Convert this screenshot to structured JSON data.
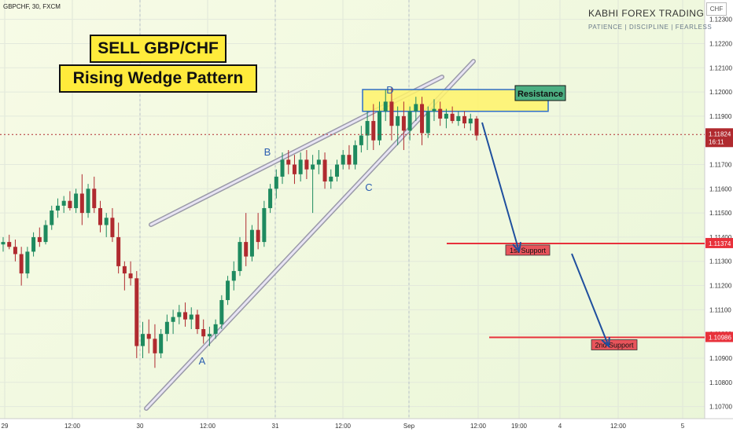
{
  "header": {
    "symbol": "GBPCHF, 30, FXCM"
  },
  "brand": {
    "name": "KABHI FOREX TRADING",
    "tagline": "PATIENCE  |  DISCIPLINE  |  FEARLESS"
  },
  "currency": "CHF",
  "titles": {
    "line1": "SELL GBP/CHF",
    "line2": "Rising Wedge Pattern"
  },
  "chart_data": {
    "type": "candlestick",
    "y_range": [
      1.1065,
      1.1238
    ],
    "y_ticks": [
      "1.12300",
      "1.12200",
      "1.12100",
      "1.12000",
      "1.11900",
      "1.11700",
      "1.11600",
      "1.11500",
      "1.11400",
      "1.11300",
      "1.11200",
      "1.11100",
      "1.11000",
      "1.10900",
      "1.10800",
      "1.10700"
    ],
    "y_tick_values": [
      1.123,
      1.122,
      1.121,
      1.12,
      1.119,
      1.117,
      1.116,
      1.115,
      1.114,
      1.113,
      1.112,
      1.111,
      1.11,
      1.109,
      1.108,
      1.107
    ],
    "x_ticks": [
      "29",
      "12:00",
      "30",
      "12:00",
      "31",
      "12:00",
      "Sep",
      "12:00",
      "19:00",
      "4",
      "12:00",
      "5"
    ],
    "current_price": {
      "value": "1.11824",
      "countdown": "16:11"
    },
    "levels": [
      {
        "name": "Resistance",
        "low": 1.1192,
        "high": 1.1201
      },
      {
        "name": "1st Support",
        "value": 1.11374,
        "label": "1.11374"
      },
      {
        "name": "2nd Support",
        "value": 1.10986,
        "label": "1.10986"
      }
    ],
    "pivot_labels": [
      "A",
      "B",
      "C",
      "D"
    ],
    "candles": [
      [
        1.1137,
        1.114,
        1.1134,
        1.1138
      ],
      [
        1.1138,
        1.1141,
        1.1135,
        1.1136
      ],
      [
        1.1136,
        1.1139,
        1.113,
        1.1133
      ],
      [
        1.1133,
        1.1136,
        1.112,
        1.1125
      ],
      [
        1.1125,
        1.1136,
        1.1123,
        1.1134
      ],
      [
        1.1134,
        1.1142,
        1.1132,
        1.114
      ],
      [
        1.114,
        1.1144,
        1.1136,
        1.1138
      ],
      [
        1.1138,
        1.1147,
        1.1137,
        1.1145
      ],
      [
        1.1145,
        1.1153,
        1.1143,
        1.1151
      ],
      [
        1.1151,
        1.1156,
        1.1148,
        1.1153
      ],
      [
        1.1153,
        1.1157,
        1.115,
        1.1155
      ],
      [
        1.1155,
        1.1159,
        1.1151,
        1.1152
      ],
      [
        1.1152,
        1.116,
        1.115,
        1.1158
      ],
      [
        1.1158,
        1.1166,
        1.1145,
        1.115
      ],
      [
        1.115,
        1.1162,
        1.1148,
        1.116
      ],
      [
        1.116,
        1.1165,
        1.115,
        1.1152
      ],
      [
        1.1152,
        1.1155,
        1.1142,
        1.1145
      ],
      [
        1.1145,
        1.115,
        1.114,
        1.1148
      ],
      [
        1.1148,
        1.1152,
        1.1138,
        1.114
      ],
      [
        1.114,
        1.1146,
        1.1125,
        1.1128
      ],
      [
        1.1128,
        1.113,
        1.1118,
        1.1125
      ],
      [
        1.1125,
        1.113,
        1.112,
        1.1123
      ],
      [
        1.1123,
        1.1126,
        1.109,
        1.1095
      ],
      [
        1.1095,
        1.1105,
        1.109,
        1.11
      ],
      [
        1.11,
        1.1106,
        1.1092,
        1.1098
      ],
      [
        1.1098,
        1.1104,
        1.1086,
        1.1092
      ],
      [
        1.1092,
        1.1102,
        1.109,
        1.11
      ],
      [
        1.11,
        1.1108,
        1.1097,
        1.1105
      ],
      [
        1.1105,
        1.111,
        1.11,
        1.1107
      ],
      [
        1.1107,
        1.1112,
        1.1104,
        1.1109
      ],
      [
        1.1109,
        1.1113,
        1.1103,
        1.1106
      ],
      [
        1.1106,
        1.1111,
        1.1102,
        1.1108
      ],
      [
        1.1108,
        1.111,
        1.11,
        1.1102
      ],
      [
        1.1102,
        1.1106,
        1.1096,
        1.1099
      ],
      [
        1.1099,
        1.1103,
        1.1095,
        1.11
      ],
      [
        1.11,
        1.1106,
        1.1098,
        1.1104
      ],
      [
        1.1104,
        1.1116,
        1.1102,
        1.1114
      ],
      [
        1.1114,
        1.1124,
        1.1112,
        1.1122
      ],
      [
        1.1122,
        1.113,
        1.1118,
        1.1126
      ],
      [
        1.1126,
        1.114,
        1.1124,
        1.1138
      ],
      [
        1.1138,
        1.115,
        1.1128,
        1.1132
      ],
      [
        1.1132,
        1.1145,
        1.113,
        1.1143
      ],
      [
        1.1143,
        1.115,
        1.1135,
        1.1138
      ],
      [
        1.1138,
        1.1155,
        1.1136,
        1.1152
      ],
      [
        1.1152,
        1.1162,
        1.115,
        1.116
      ],
      [
        1.116,
        1.1168,
        1.1156,
        1.1165
      ],
      [
        1.1165,
        1.1175,
        1.1162,
        1.1172
      ],
      [
        1.1172,
        1.1176,
        1.1166,
        1.117
      ],
      [
        1.117,
        1.1174,
        1.1162,
        1.1166
      ],
      [
        1.1166,
        1.1175,
        1.1163,
        1.1172
      ],
      [
        1.1172,
        1.1176,
        1.1164,
        1.1168
      ],
      [
        1.1168,
        1.1174,
        1.115,
        1.117
      ],
      [
        1.117,
        1.1176,
        1.1166,
        1.1172
      ],
      [
        1.1172,
        1.1175,
        1.116,
        1.1163
      ],
      [
        1.1163,
        1.1168,
        1.116,
        1.1165
      ],
      [
        1.1165,
        1.1172,
        1.1163,
        1.117
      ],
      [
        1.117,
        1.1176,
        1.1168,
        1.1174
      ],
      [
        1.1174,
        1.1178,
        1.1168,
        1.117
      ],
      [
        1.117,
        1.118,
        1.1168,
        1.1178
      ],
      [
        1.1178,
        1.1186,
        1.1175,
        1.1182
      ],
      [
        1.1182,
        1.1192,
        1.1176,
        1.1188
      ],
      [
        1.1188,
        1.1195,
        1.1176,
        1.118
      ],
      [
        1.118,
        1.1196,
        1.1178,
        1.1192
      ],
      [
        1.1192,
        1.1201,
        1.1188,
        1.1196
      ],
      [
        1.1196,
        1.1202,
        1.118,
        1.1186
      ],
      [
        1.1186,
        1.1194,
        1.1178,
        1.119
      ],
      [
        1.119,
        1.1196,
        1.1176,
        1.1184
      ],
      [
        1.1184,
        1.1194,
        1.118,
        1.1192
      ],
      [
        1.1192,
        1.1198,
        1.1188,
        1.1195
      ],
      [
        1.1195,
        1.1198,
        1.1178,
        1.1183
      ],
      [
        1.1183,
        1.1194,
        1.1181,
        1.1192
      ],
      [
        1.1192,
        1.1197,
        1.1188,
        1.1193
      ],
      [
        1.1193,
        1.1196,
        1.1186,
        1.1189
      ],
      [
        1.1189,
        1.1193,
        1.1185,
        1.1191
      ],
      [
        1.1191,
        1.1194,
        1.1187,
        1.1188
      ],
      [
        1.1188,
        1.1192,
        1.1186,
        1.119
      ],
      [
        1.119,
        1.1192,
        1.1185,
        1.1187
      ],
      [
        1.1187,
        1.1191,
        1.1184,
        1.1189
      ],
      [
        1.1189,
        1.119,
        1.118,
        1.1182
      ]
    ]
  }
}
